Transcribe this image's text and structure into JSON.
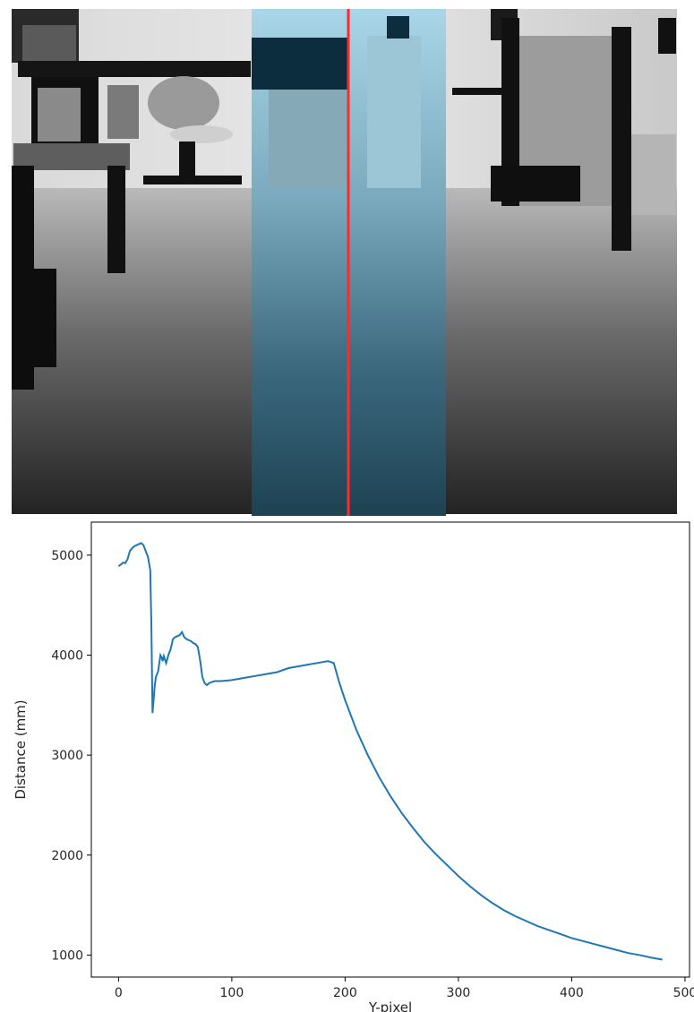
{
  "depth_image": {
    "description_colors": {
      "overlay": "#87ceeb",
      "scanline": "#ff2a2a"
    }
  },
  "chart_data": {
    "type": "line",
    "xlabel": "Y-pixel",
    "ylabel": "Distance (mm)",
    "xlim": [
      -24,
      504
    ],
    "ylim": [
      780,
      5330
    ],
    "xticks": [
      0,
      100,
      200,
      300,
      400,
      500
    ],
    "yticks": [
      1000,
      2000,
      3000,
      4000,
      5000
    ],
    "grid": false,
    "line_color": "#1f77b4",
    "series": [
      {
        "x": [
          0,
          2,
          4,
          6,
          8,
          10,
          12,
          14,
          16,
          18,
          20,
          22,
          24,
          26,
          28,
          29,
          30,
          31,
          32,
          33,
          35,
          37,
          38,
          39,
          40,
          42,
          44,
          46,
          48,
          50,
          52,
          54,
          56,
          58,
          60,
          62,
          64,
          66,
          68,
          70,
          72,
          74,
          76,
          78,
          80,
          82,
          85,
          90,
          100,
          110,
          120,
          130,
          140,
          150,
          160,
          170,
          180,
          185,
          190,
          195,
          200,
          210,
          220,
          230,
          240,
          250,
          260,
          270,
          280,
          290,
          300,
          310,
          320,
          330,
          340,
          350,
          360,
          370,
          380,
          390,
          400,
          410,
          420,
          430,
          440,
          450,
          460,
          470,
          480
        ],
        "y": [
          4890,
          4905,
          4925,
          4920,
          4960,
          5040,
          5070,
          5090,
          5100,
          5110,
          5120,
          5100,
          5040,
          4980,
          4850,
          4300,
          3420,
          3560,
          3700,
          3780,
          3840,
          4000,
          3980,
          3940,
          3990,
          3920,
          4000,
          4060,
          4160,
          4180,
          4190,
          4200,
          4230,
          4180,
          4160,
          4150,
          4140,
          4120,
          4110,
          4080,
          3950,
          3780,
          3720,
          3700,
          3720,
          3730,
          3740,
          3740,
          3750,
          3770,
          3790,
          3810,
          3830,
          3870,
          3890,
          3910,
          3930,
          3940,
          3920,
          3720,
          3550,
          3250,
          3000,
          2780,
          2590,
          2420,
          2270,
          2130,
          2010,
          1900,
          1790,
          1690,
          1600,
          1520,
          1450,
          1390,
          1340,
          1290,
          1250,
          1210,
          1170,
          1140,
          1110,
          1080,
          1050,
          1020,
          1000,
          975,
          955
        ]
      }
    ]
  }
}
